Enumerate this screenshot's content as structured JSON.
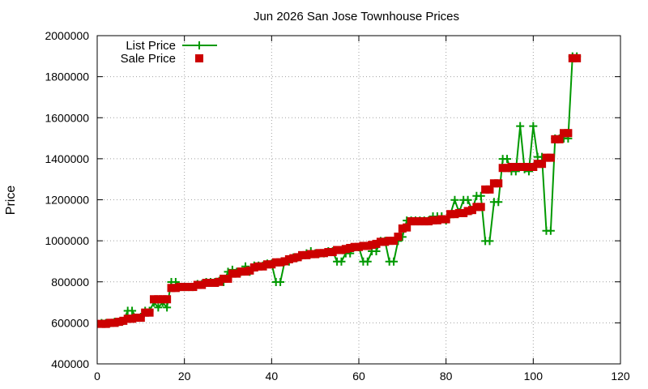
{
  "chart_data": {
    "type": "line",
    "title": "Jun 2026 San Jose Townhouse Prices",
    "xlabel": "",
    "ylabel": "Price",
    "xlim": [
      0,
      120
    ],
    "ylim": [
      400000,
      2000000
    ],
    "xticks": [
      0,
      20,
      40,
      60,
      80,
      100,
      120
    ],
    "yticks": [
      400000,
      600000,
      800000,
      1000000,
      1200000,
      1400000,
      1600000,
      1800000,
      2000000
    ],
    "grid": true,
    "legend_position": "top-left",
    "series": [
      {
        "name": "List Price",
        "style": "line-plus",
        "color": "#009900",
        "x": [
          1,
          2,
          3,
          4,
          5,
          6,
          7,
          8,
          9,
          10,
          11,
          12,
          13,
          14,
          15,
          16,
          17,
          18,
          19,
          20,
          21,
          22,
          23,
          24,
          25,
          26,
          27,
          28,
          29,
          30,
          31,
          32,
          33,
          34,
          35,
          36,
          37,
          38,
          39,
          40,
          41,
          42,
          43,
          44,
          45,
          46,
          47,
          48,
          49,
          50,
          51,
          52,
          53,
          54,
          55,
          56,
          57,
          58,
          59,
          60,
          61,
          62,
          63,
          64,
          65,
          66,
          67,
          68,
          69,
          70,
          71,
          72,
          73,
          74,
          75,
          76,
          77,
          78,
          79,
          80,
          81,
          82,
          83,
          84,
          85,
          86,
          87,
          88,
          89,
          90,
          91,
          92,
          93,
          94,
          95,
          96,
          97,
          98,
          99,
          100,
          101,
          102,
          103,
          104,
          105,
          106,
          107,
          108,
          109,
          110
        ],
        "y": [
          599000,
          599000,
          599000,
          605000,
          605000,
          609000,
          659000,
          659000,
          625000,
          629000,
          659000,
          659000,
          699000,
          675000,
          699000,
          675000,
          799000,
          799000,
          775000,
          775000,
          775000,
          775000,
          789000,
          789000,
          799000,
          799000,
          799000,
          805000,
          799000,
          849000,
          859000,
          849000,
          849000,
          875000,
          849000,
          879000,
          879000,
          879000,
          889000,
          889000,
          799000,
          799000,
          899000,
          899000,
          919000,
          919000,
          929000,
          939000,
          949000,
          939000,
          939000,
          939000,
          949000,
          949000,
          899000,
          899000,
          939000,
          939000,
          969000,
          969000,
          899000,
          899000,
          949000,
          949000,
          999000,
          999000,
          899000,
          899000,
          999000,
          1019000,
          1099000,
          1099000,
          1099000,
          1099000,
          1099000,
          1099000,
          1119000,
          1119000,
          1119000,
          1099000,
          1129000,
          1199000,
          1139000,
          1199000,
          1199000,
          1149000,
          1219000,
          1219000,
          999000,
          999000,
          1189000,
          1189000,
          1399000,
          1399000,
          1339000,
          1339000,
          1559000,
          1349000,
          1339000,
          1559000,
          1409000,
          1409000,
          1049000,
          1049000,
          1499000,
          1499000,
          1499000,
          1499000,
          1899000,
          1899000
        ]
      },
      {
        "name": "Sale Price",
        "style": "square",
        "color": "#cc0000",
        "x": [
          1,
          2,
          3,
          4,
          5,
          6,
          7,
          8,
          9,
          10,
          11,
          12,
          13,
          14,
          15,
          16,
          17,
          18,
          19,
          20,
          21,
          22,
          23,
          24,
          25,
          26,
          27,
          28,
          29,
          30,
          31,
          32,
          33,
          34,
          35,
          36,
          37,
          38,
          39,
          40,
          41,
          42,
          43,
          44,
          45,
          46,
          47,
          48,
          49,
          50,
          51,
          52,
          53,
          54,
          55,
          56,
          57,
          58,
          59,
          60,
          61,
          62,
          63,
          64,
          65,
          66,
          67,
          68,
          69,
          70,
          71,
          72,
          73,
          74,
          75,
          76,
          77,
          78,
          79,
          80,
          81,
          82,
          83,
          84,
          85,
          86,
          87,
          88,
          89,
          90,
          91,
          92,
          93,
          94,
          95,
          96,
          97,
          98,
          99,
          100,
          101,
          102,
          103,
          104,
          105,
          106,
          107,
          108,
          109,
          110
        ],
        "y": [
          595000,
          595000,
          600000,
          600000,
          605000,
          610000,
          620000,
          620000,
          625000,
          625000,
          650000,
          650000,
          715000,
          715000,
          715000,
          715000,
          770000,
          770000,
          775000,
          775000,
          775000,
          775000,
          785000,
          785000,
          795000,
          795000,
          795000,
          800000,
          815000,
          815000,
          840000,
          840000,
          850000,
          850000,
          855000,
          870000,
          875000,
          875000,
          885000,
          885000,
          895000,
          895000,
          900000,
          910000,
          915000,
          920000,
          930000,
          930000,
          935000,
          935000,
          940000,
          940000,
          945000,
          945000,
          955000,
          955000,
          960000,
          965000,
          970000,
          970000,
          975000,
          975000,
          980000,
          985000,
          995000,
          995000,
          1000000,
          1000000,
          1020000,
          1060000,
          1065000,
          1095000,
          1095000,
          1095000,
          1095000,
          1095000,
          1100000,
          1100000,
          1105000,
          1105000,
          1130000,
          1130000,
          1135000,
          1135000,
          1145000,
          1150000,
          1165000,
          1165000,
          1250000,
          1250000,
          1280000,
          1280000,
          1355000,
          1355000,
          1360000,
          1360000,
          1360000,
          1360000,
          1360000,
          1360000,
          1375000,
          1375000,
          1405000,
          1405000,
          1495000,
          1495000,
          1525000,
          1525000,
          1890000,
          1890000
        ]
      }
    ]
  }
}
